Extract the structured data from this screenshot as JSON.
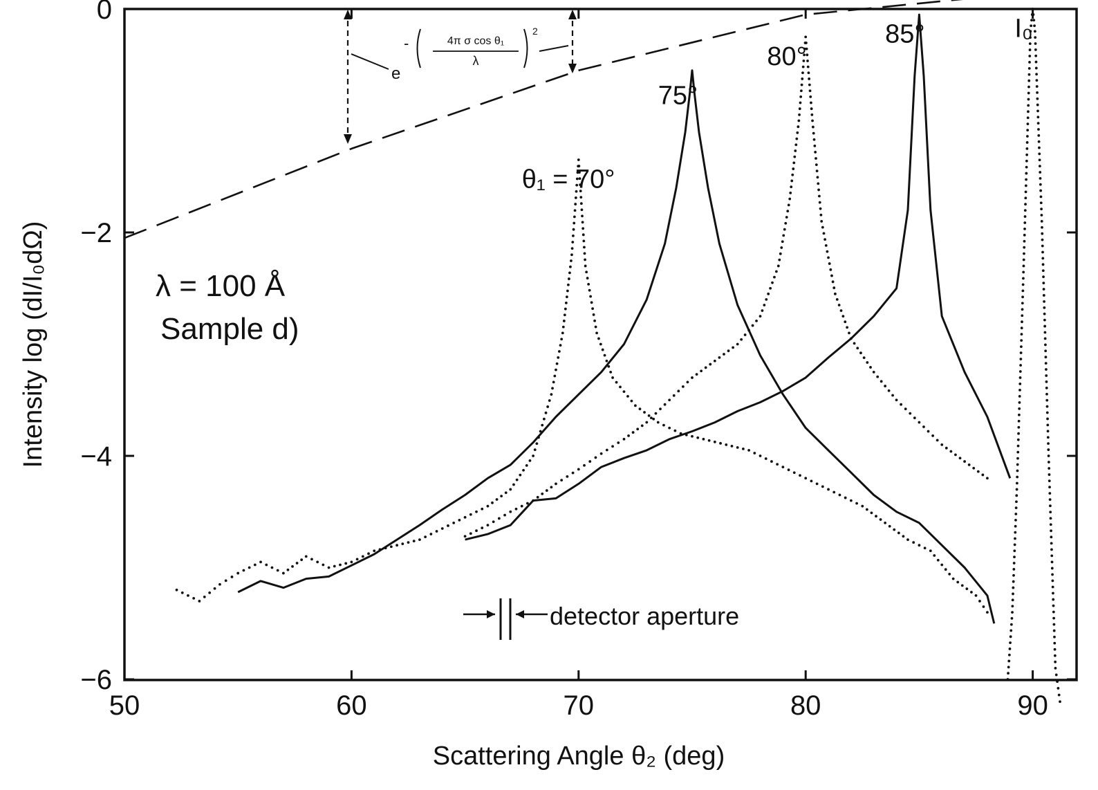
{
  "chart_data": {
    "type": "line",
    "title": "",
    "xlabel": "Scattering  Angle  θ₂ (deg)",
    "ylabel": "Intensity  log (dI/I₀dΩ)",
    "xlim": [
      50,
      92
    ],
    "ylim": [
      -6,
      0
    ],
    "x_ticks": [
      50,
      60,
      70,
      80,
      90
    ],
    "y_ticks": [
      0,
      -2,
      -4,
      -6
    ],
    "x_tick_labels": [
      "50",
      "60",
      "70",
      "80",
      "90"
    ],
    "y_tick_labels": [
      "0",
      "−2",
      "−4",
      "−6"
    ],
    "grid": false,
    "legend": "none",
    "annotations": {
      "sample_line1": "λ = 100 Å",
      "sample_line2": "Sample d)",
      "detector": "detector  aperture",
      "formula_base": "e",
      "formula_minus": "-",
      "formula_numerator": "4π σ cos θ₁",
      "formula_denominator": "λ",
      "formula_power": "2"
    },
    "series": [
      {
        "name": "θ₁ = 70°",
        "style": "dotted",
        "x": [
          52.3,
          53.3,
          54.2,
          55.0,
          56.0,
          57.0,
          58.0,
          59.0,
          60.0,
          61.0,
          62.0,
          63.0,
          64.0,
          65.0,
          66.0,
          67.0,
          68.0,
          68.8,
          69.3,
          69.7,
          70.0,
          70.3,
          70.8,
          71.5,
          72.5,
          73.5,
          74.5,
          75.5,
          76.5,
          77.5,
          78.5,
          79.5,
          80.5,
          81.5,
          82.5,
          83.5,
          84.5,
          85.5,
          86.5,
          87.5,
          88.0
        ],
        "y": [
          -5.2,
          -5.3,
          -5.15,
          -5.05,
          -4.95,
          -5.05,
          -4.9,
          -5.0,
          -4.95,
          -4.85,
          -4.8,
          -4.75,
          -4.65,
          -4.55,
          -4.45,
          -4.3,
          -4.0,
          -3.45,
          -2.9,
          -2.2,
          -1.35,
          -2.3,
          -2.9,
          -3.3,
          -3.55,
          -3.7,
          -3.8,
          -3.85,
          -3.9,
          -3.95,
          -4.05,
          -4.15,
          -4.25,
          -4.35,
          -4.45,
          -4.6,
          -4.75,
          -4.85,
          -5.1,
          -5.25,
          -5.4
        ]
      },
      {
        "name": "75°",
        "style": "solid",
        "x": [
          55.0,
          56.0,
          57.0,
          58.0,
          59.0,
          60.0,
          61.0,
          62.0,
          63.0,
          64.0,
          65.0,
          66.0,
          67.0,
          68.0,
          69.0,
          70.0,
          71.0,
          72.0,
          73.0,
          73.8,
          74.3,
          74.7,
          74.9,
          75.0,
          75.1,
          75.3,
          75.7,
          76.2,
          77.0,
          78.0,
          79.0,
          80.0,
          81.0,
          82.0,
          83.0,
          84.0,
          85.0,
          86.0,
          87.0,
          88.0,
          88.3
        ],
        "y": [
          -5.22,
          -5.12,
          -5.18,
          -5.1,
          -5.08,
          -4.98,
          -4.88,
          -4.75,
          -4.62,
          -4.48,
          -4.35,
          -4.2,
          -4.08,
          -3.88,
          -3.65,
          -3.45,
          -3.25,
          -3.0,
          -2.6,
          -2.1,
          -1.6,
          -1.1,
          -0.75,
          -0.55,
          -0.75,
          -1.1,
          -1.6,
          -2.1,
          -2.65,
          -3.1,
          -3.45,
          -3.75,
          -3.95,
          -4.15,
          -4.35,
          -4.5,
          -4.6,
          -4.8,
          -5.0,
          -5.25,
          -5.5
        ]
      },
      {
        "name": "80°",
        "style": "dotted",
        "x": [
          65.0,
          66.0,
          67.0,
          68.0,
          69.0,
          70.0,
          71.0,
          72.0,
          73.0,
          74.0,
          75.0,
          76.0,
          77.0,
          78.0,
          78.8,
          79.3,
          79.7,
          80.0,
          80.3,
          80.7,
          81.3,
          82.0,
          83.0,
          84.0,
          85.0,
          86.0,
          87.0,
          88.0
        ],
        "y": [
          -4.72,
          -4.62,
          -4.5,
          -4.4,
          -4.25,
          -4.12,
          -3.98,
          -3.85,
          -3.7,
          -3.5,
          -3.3,
          -3.15,
          -3.0,
          -2.75,
          -2.3,
          -1.7,
          -1.0,
          -0.25,
          -1.0,
          -1.9,
          -2.55,
          -2.95,
          -3.25,
          -3.5,
          -3.7,
          -3.9,
          -4.05,
          -4.2
        ]
      },
      {
        "name": "85°",
        "style": "solid",
        "x": [
          65.0,
          66.0,
          67.0,
          68.0,
          69.0,
          70.0,
          71.0,
          72.0,
          73.0,
          74.0,
          75.0,
          76.0,
          77.0,
          78.0,
          79.0,
          80.0,
          81.0,
          82.0,
          83.0,
          84.0,
          84.5,
          84.8,
          85.0,
          85.2,
          85.5,
          86.0,
          87.0,
          88.0,
          89.0
        ],
        "y": [
          -4.75,
          -4.7,
          -4.62,
          -4.4,
          -4.38,
          -4.25,
          -4.1,
          -4.02,
          -3.95,
          -3.85,
          -3.78,
          -3.7,
          -3.6,
          -3.52,
          -3.42,
          -3.3,
          -3.12,
          -2.95,
          -2.75,
          -2.5,
          -1.8,
          -0.6,
          -0.05,
          -0.6,
          -1.8,
          -2.75,
          -3.25,
          -3.65,
          -4.2
        ]
      },
      {
        "name": "I₀",
        "style": "dotted",
        "x": [
          88.9,
          89.1,
          89.3,
          89.6,
          89.9,
          90.0,
          90.1,
          90.4,
          90.7,
          91.0,
          91.2
        ],
        "y": [
          -6.0,
          -5.4,
          -4.3,
          -2.3,
          -0.2,
          0.0,
          -0.2,
          -1.9,
          -4.0,
          -5.9,
          -6.2
        ]
      },
      {
        "name": "",
        "style": "dashed",
        "x": [
          50,
          60,
          70,
          80,
          90
        ],
        "y": [
          -2.05,
          -1.25,
          -0.55,
          -0.05,
          0.15
        ]
      }
    ],
    "peak_labels": [
      {
        "text": "θ₁ = 70°",
        "x": 67.5,
        "y": -1.6
      },
      {
        "text": "75°",
        "x": 73.5,
        "y": -0.85
      },
      {
        "text": "80°",
        "x": 78.3,
        "y": -0.5
      },
      {
        "text": "85°",
        "x": 83.5,
        "y": -0.3
      },
      {
        "text": "I₀",
        "x": 89.2,
        "y": -0.25
      }
    ]
  }
}
